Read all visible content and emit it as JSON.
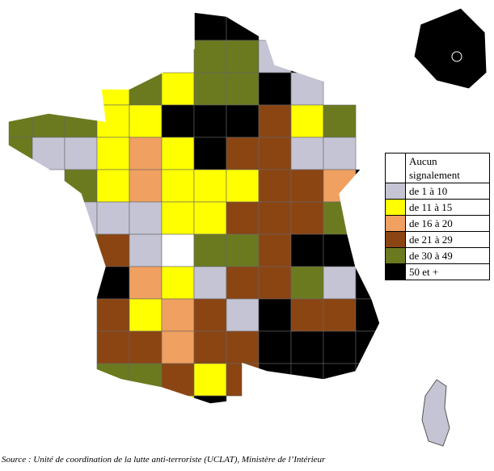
{
  "legend": {
    "items": [
      {
        "label": "Aucun signalement",
        "color": "#ffffff"
      },
      {
        "label": "de 1 à 10",
        "color": "#c4c4d4"
      },
      {
        "label": "de 11 à 15",
        "color": "#ffff00"
      },
      {
        "label": "de 16 à 20",
        "color": "#f0a060"
      },
      {
        "label": "de 21 à 29",
        "color": "#8b4513"
      },
      {
        "label": "de 30 à 49",
        "color": "#6b7a1f"
      },
      {
        "label": "50 et +",
        "color": "#000000"
      }
    ]
  },
  "source": "Source : Unité de coordination de la lutte anti-terroriste (UCLAT), Ministère de l’Intérieur"
}
